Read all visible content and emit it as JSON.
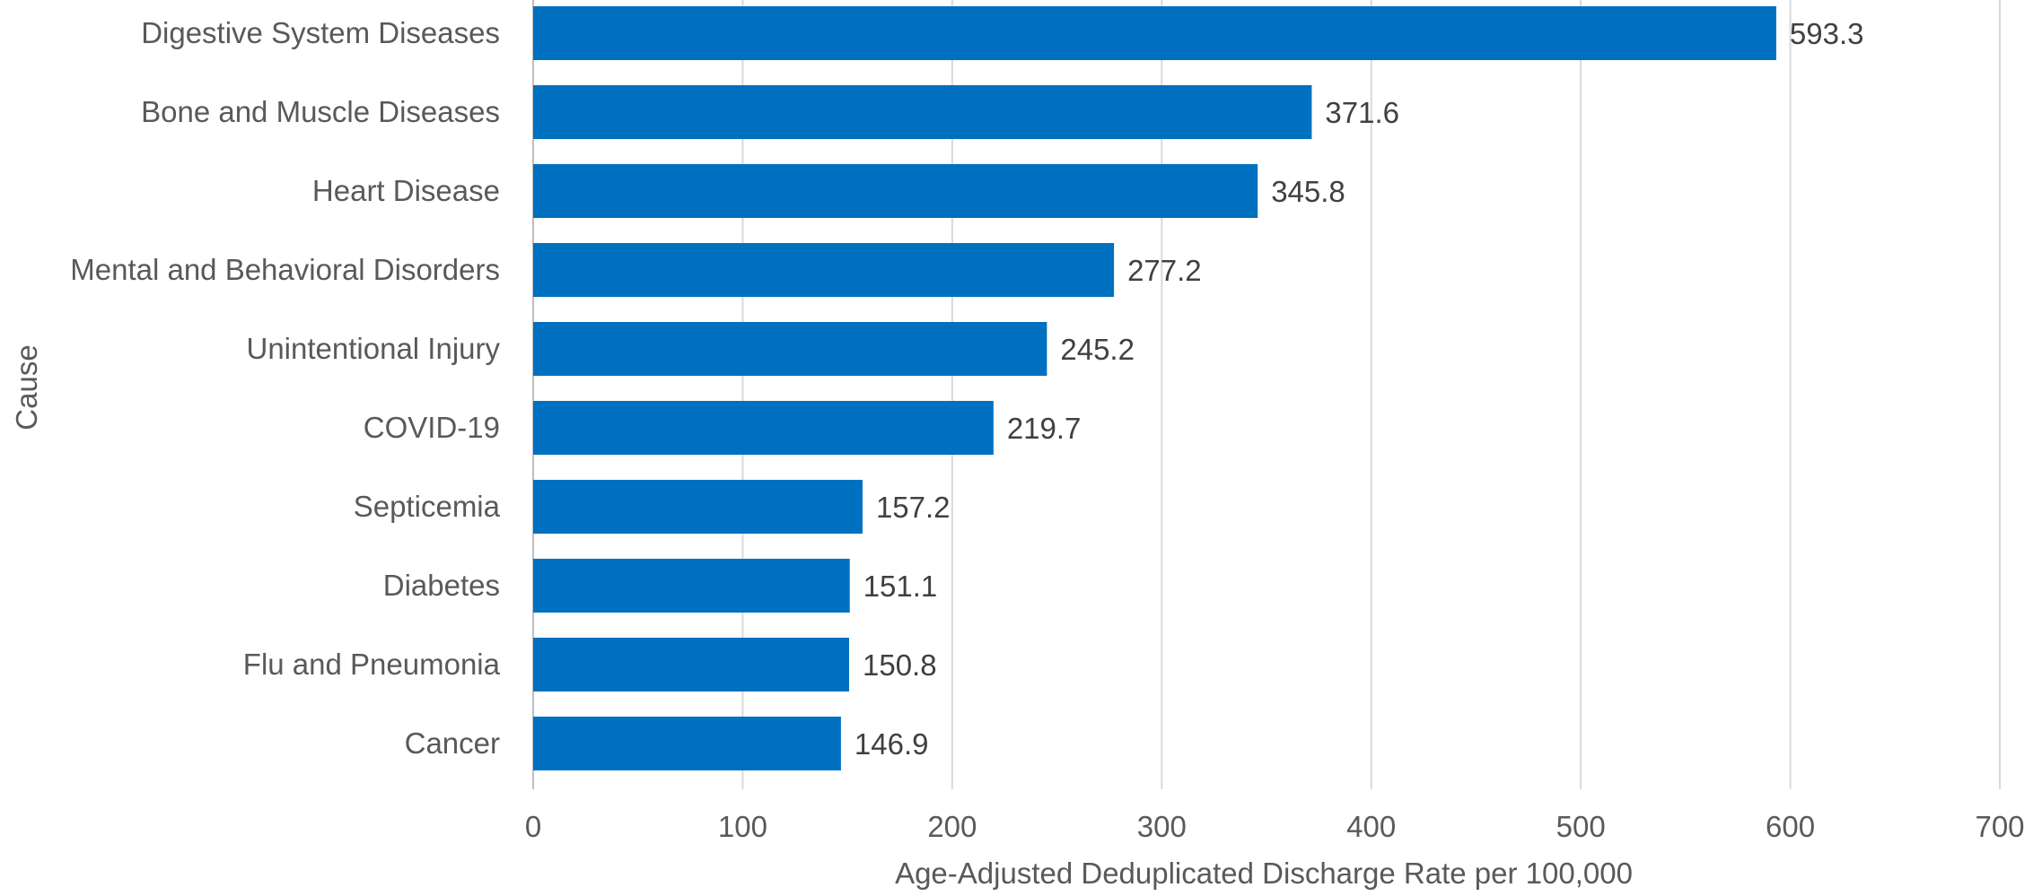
{
  "chart_data": {
    "type": "bar",
    "orientation": "horizontal",
    "categories": [
      "Digestive System Diseases",
      "Bone and Muscle Diseases",
      "Heart Disease",
      "Mental and Behavioral Disorders",
      "Unintentional Injury",
      "COVID-19",
      "Septicemia",
      "Diabetes",
      "Flu and Pneumonia",
      "Cancer"
    ],
    "values": [
      593.3,
      371.6,
      345.8,
      277.2,
      245.2,
      219.7,
      157.2,
      151.1,
      150.8,
      146.9
    ],
    "data_labels": [
      "593.3",
      "371.6",
      "345.8",
      "277.2",
      "245.2",
      "219.7",
      "157.2",
      "151.1",
      "150.8",
      "146.9"
    ],
    "xlabel": "Age-Adjusted Deduplicated Discharge Rate per 100,000",
    "ylabel": "Cause",
    "xlim": [
      0,
      700
    ],
    "xticks": [
      0,
      100,
      200,
      300,
      400,
      500,
      600,
      700
    ],
    "xtick_labels": [
      "0",
      "100",
      "200",
      "300",
      "400",
      "500",
      "600",
      "700"
    ],
    "grid": "vertical",
    "legend": "none",
    "colors": {
      "bar": "#0070C0",
      "grid": "#D9D9D9",
      "text": "#595959",
      "data_label": "#404040"
    }
  }
}
